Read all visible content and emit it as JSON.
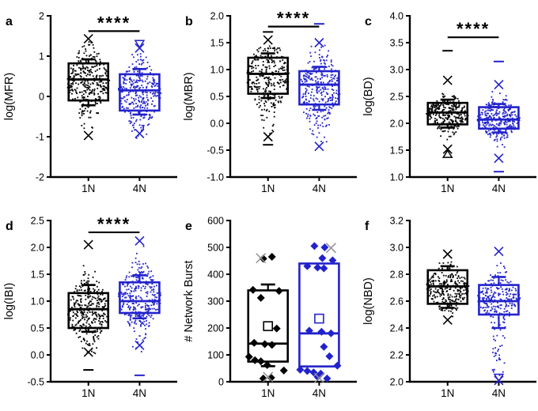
{
  "figure": {
    "background": "#ffffff",
    "significance_label": "****"
  },
  "colors": {
    "black": "#000000",
    "blue": "#2222cc",
    "grey": "#909090"
  },
  "group_labels": [
    "1N",
    "4N"
  ],
  "chart_data": [
    {
      "type": "box",
      "letter": "a",
      "ylabel": "log(MFR)",
      "ylim": [
        -2,
        2
      ],
      "yticks": [
        {
          "v": 2,
          "l": "2"
        },
        {
          "v": 1,
          "l": "1"
        },
        {
          "v": 0,
          "l": "0"
        },
        {
          "v": -1,
          "l": "-1"
        },
        {
          "v": -2,
          "l": "-2"
        }
      ],
      "sig": true,
      "sig_y": 1.62,
      "series": [
        {
          "label": "1N",
          "color": "black",
          "box": {
            "q1": -0.1,
            "median": 0.42,
            "q3": 0.82,
            "wlow": -0.22,
            "whigh": 0.92
          },
          "cloud": {
            "n": 320,
            "mean": 0.35,
            "sd": 0.45,
            "min": -1.05,
            "max": 1.38
          },
          "x_marks": [
            1.43,
            -0.97
          ],
          "dash_marks": [],
          "tri_marks": []
        },
        {
          "label": "4N",
          "color": "blue",
          "box": {
            "q1": -0.35,
            "median": 0.15,
            "q3": 0.55,
            "wlow": -0.45,
            "whigh": 0.68
          },
          "cloud": {
            "n": 320,
            "mean": 0.08,
            "sd": 0.45,
            "min": -1.1,
            "max": 1.1
          },
          "x_marks": [
            1.2,
            -0.92
          ],
          "dash_marks": [],
          "tri_marks": [
            [
              1.3,
              "down"
            ]
          ]
        }
      ]
    },
    {
      "type": "box",
      "letter": "b",
      "ylabel": "log(MBR)",
      "ylim": [
        -1,
        2
      ],
      "yticks": [
        {
          "v": 2,
          "l": "2.0"
        },
        {
          "v": 1.5,
          "l": "1.5"
        },
        {
          "v": 1,
          "l": "1.0"
        },
        {
          "v": 0.5,
          "l": "0.5"
        },
        {
          "v": 0,
          "l": "0.0"
        },
        {
          "v": -0.5,
          "l": "-0.5"
        },
        {
          "v": -1,
          "l": "-1.0"
        }
      ],
      "sig": true,
      "sig_y": 1.8,
      "series": [
        {
          "label": "1N",
          "color": "black",
          "box": {
            "q1": 0.55,
            "median": 0.92,
            "q3": 1.22,
            "wlow": 0.47,
            "whigh": 1.3
          },
          "cloud": {
            "n": 300,
            "mean": 0.85,
            "sd": 0.38,
            "min": -0.35,
            "max": 1.45
          },
          "x_marks": [
            1.55,
            -0.25
          ],
          "dash_marks": [
            1.7,
            -0.4
          ],
          "tri_marks": []
        },
        {
          "label": "4N",
          "color": "blue",
          "box": {
            "q1": 0.35,
            "median": 0.72,
            "q3": 0.97,
            "wlow": 0.25,
            "whigh": 1.05
          },
          "cloud": {
            "n": 300,
            "mean": 0.62,
            "sd": 0.42,
            "min": -0.4,
            "max": 1.45
          },
          "x_marks": [
            1.5,
            -0.43
          ],
          "dash_marks": [
            1.85
          ],
          "tri_marks": []
        }
      ]
    },
    {
      "type": "box",
      "letter": "c",
      "ylabel": "log(BD)",
      "ylim": [
        1,
        4
      ],
      "yticks": [
        {
          "v": 4,
          "l": "4.0"
        },
        {
          "v": 3.5,
          "l": "3.5"
        },
        {
          "v": 3,
          "l": "3.0"
        },
        {
          "v": 2.5,
          "l": "2.5"
        },
        {
          "v": 2,
          "l": "2.0"
        },
        {
          "v": 1.5,
          "l": "1.5"
        },
        {
          "v": 1,
          "l": "1.0"
        }
      ],
      "sig": true,
      "sig_y": 3.6,
      "series": [
        {
          "label": "1N",
          "color": "black",
          "box": {
            "q1": 1.98,
            "median": 2.2,
            "q3": 2.38,
            "wlow": 1.92,
            "whigh": 2.44
          },
          "cloud": {
            "n": 300,
            "mean": 2.18,
            "sd": 0.17,
            "min": 1.55,
            "max": 2.62
          },
          "x_marks": [
            2.8,
            1.52
          ],
          "dash_marks": [
            3.35
          ],
          "tri_marks": [
            [
              1.43,
              "up"
            ]
          ]
        },
        {
          "label": "4N",
          "color": "blue",
          "box": {
            "q1": 1.9,
            "median": 2.07,
            "q3": 2.3,
            "wlow": 1.83,
            "whigh": 2.36
          },
          "cloud": {
            "n": 300,
            "mean": 2.08,
            "sd": 0.2,
            "min": 1.45,
            "max": 2.65
          },
          "x_marks": [
            2.72,
            1.35
          ],
          "dash_marks": [
            3.15,
            1.1
          ],
          "tri_marks": []
        }
      ]
    },
    {
      "type": "box",
      "letter": "d",
      "ylabel": "log(IBI)",
      "ylim": [
        -0.5,
        2.5
      ],
      "yticks": [
        {
          "v": 2.5,
          "l": "2.5"
        },
        {
          "v": 2,
          "l": "2.0"
        },
        {
          "v": 1.5,
          "l": "1.5"
        },
        {
          "v": 1,
          "l": "1.0"
        },
        {
          "v": 0.5,
          "l": "0.5"
        },
        {
          "v": 0,
          "l": "0.0"
        },
        {
          "v": -0.5,
          "l": "-0.5"
        }
      ],
      "sig": true,
      "sig_y": 2.28,
      "series": [
        {
          "label": "1N",
          "color": "black",
          "box": {
            "q1": 0.5,
            "median": 0.85,
            "q3": 1.15,
            "wlow": 0.43,
            "whigh": 1.3
          },
          "cloud": {
            "n": 330,
            "mean": 0.82,
            "sd": 0.35,
            "min": 0.0,
            "max": 1.95
          },
          "x_marks": [
            2.05,
            0.05
          ],
          "dash_marks": [
            -0.28
          ],
          "tri_marks": []
        },
        {
          "label": "4N",
          "color": "blue",
          "box": {
            "q1": 0.78,
            "median": 1.0,
            "q3": 1.35,
            "wlow": 0.68,
            "whigh": 1.48
          },
          "cloud": {
            "n": 330,
            "mean": 1.05,
            "sd": 0.35,
            "min": 0.05,
            "max": 2.05
          },
          "x_marks": [
            2.12,
            0.18
          ],
          "dash_marks": [
            -0.38
          ],
          "tri_marks": []
        }
      ]
    },
    {
      "type": "box",
      "letter": "e",
      "ylabel": "# Network Burst",
      "ylim": [
        0,
        600
      ],
      "yticks": [
        {
          "v": 600,
          "l": "600"
        },
        {
          "v": 500,
          "l": "500"
        },
        {
          "v": 400,
          "l": "400"
        },
        {
          "v": 300,
          "l": "300"
        },
        {
          "v": 200,
          "l": "200"
        },
        {
          "v": 100,
          "l": "100"
        },
        {
          "v": 0,
          "l": "0"
        }
      ],
      "sig": false,
      "sig_y": null,
      "series": [
        {
          "label": "1N",
          "color": "black",
          "box": {
            "q1": 75,
            "median": 142,
            "q3": 340,
            "wlow": 58,
            "whigh": 362,
            "mean": 207
          },
          "points": [
            [
              465,
              0.1
            ],
            [
              458,
              -0.12
            ],
            [
              342,
              -0.38
            ],
            [
              338,
              0.28
            ],
            [
              312,
              -0.18
            ],
            [
              198,
              0.22
            ],
            [
              145,
              -0.35
            ],
            [
              140,
              -0.08
            ],
            [
              137,
              0.1
            ],
            [
              93,
              -0.48
            ],
            [
              80,
              -0.33
            ],
            [
              76,
              -0.18
            ],
            [
              62,
              -0.02
            ],
            [
              42,
              0.4
            ],
            [
              15,
              0.08
            ],
            [
              12,
              -0.12
            ]
          ],
          "x_marks_grey": [
            [
              460,
              -0.18
            ],
            [
              18,
              0.0
            ]
          ],
          "x_marks": [],
          "dash_marks": [],
          "tri_marks": []
        },
        {
          "label": "4N",
          "color": "blue",
          "box": {
            "q1": 57,
            "median": 180,
            "q3": 440,
            "wlow": 57,
            "whigh": 440,
            "mean": 235
          },
          "points": [
            [
              505,
              -0.12
            ],
            [
              500,
              0.14
            ],
            [
              460,
              0.08
            ],
            [
              452,
              0.34
            ],
            [
              430,
              -0.3
            ],
            [
              425,
              -0.04
            ],
            [
              422,
              0.12
            ],
            [
              190,
              -0.25
            ],
            [
              186,
              0.06
            ],
            [
              180,
              0.3
            ],
            [
              130,
              0.12
            ],
            [
              95,
              0.26
            ],
            [
              60,
              0.46
            ],
            [
              45,
              -0.48
            ],
            [
              40,
              -0.3
            ],
            [
              35,
              -0.14
            ],
            [
              30,
              0.04
            ],
            [
              18,
              -0.04
            ],
            [
              12,
              0.2
            ]
          ],
          "x_marks_grey": [
            [
              498,
              0.3
            ],
            [
              14,
              0.0
            ]
          ],
          "x_marks": [],
          "dash_marks": [],
          "tri_marks": []
        }
      ]
    },
    {
      "type": "box",
      "letter": "f",
      "ylabel": "log(NBD)",
      "ylim": [
        2.0,
        3.2
      ],
      "yticks": [
        {
          "v": 3.2,
          "l": "3.2"
        },
        {
          "v": 3.0,
          "l": "3.0"
        },
        {
          "v": 2.8,
          "l": "2.8"
        },
        {
          "v": 2.6,
          "l": "2.6"
        },
        {
          "v": 2.4,
          "l": "2.4"
        },
        {
          "v": 2.2,
          "l": "2.2"
        },
        {
          "v": 2.0,
          "l": "2.0"
        }
      ],
      "sig": false,
      "sig_y": null,
      "series": [
        {
          "label": "1N",
          "color": "black",
          "box": {
            "q1": 2.58,
            "median": 2.71,
            "q3": 2.83,
            "wlow": 2.55,
            "whigh": 2.86
          },
          "cloud": {
            "n": 280,
            "mean": 2.7,
            "sd": 0.09,
            "min": 2.47,
            "max": 2.9
          },
          "x_marks": [
            2.95,
            2.46
          ],
          "dash_marks": [],
          "tri_marks": []
        },
        {
          "label": "4N",
          "color": "blue",
          "box": {
            "q1": 2.5,
            "median": 2.6,
            "q3": 2.72,
            "wlow": 2.4,
            "whigh": 2.78
          },
          "cloud": {
            "n": 280,
            "mean": 2.62,
            "sd": 0.09,
            "min": 2.38,
            "max": 2.95,
            "tail": {
              "frac": 0.12,
              "min": 2.02,
              "max": 2.45,
              "halfw": 8
            }
          },
          "x_marks": [
            2.97,
            2.01
          ],
          "dash_marks": [],
          "tri_marks": [
            [
              2.03,
              "down"
            ]
          ]
        }
      ]
    }
  ]
}
